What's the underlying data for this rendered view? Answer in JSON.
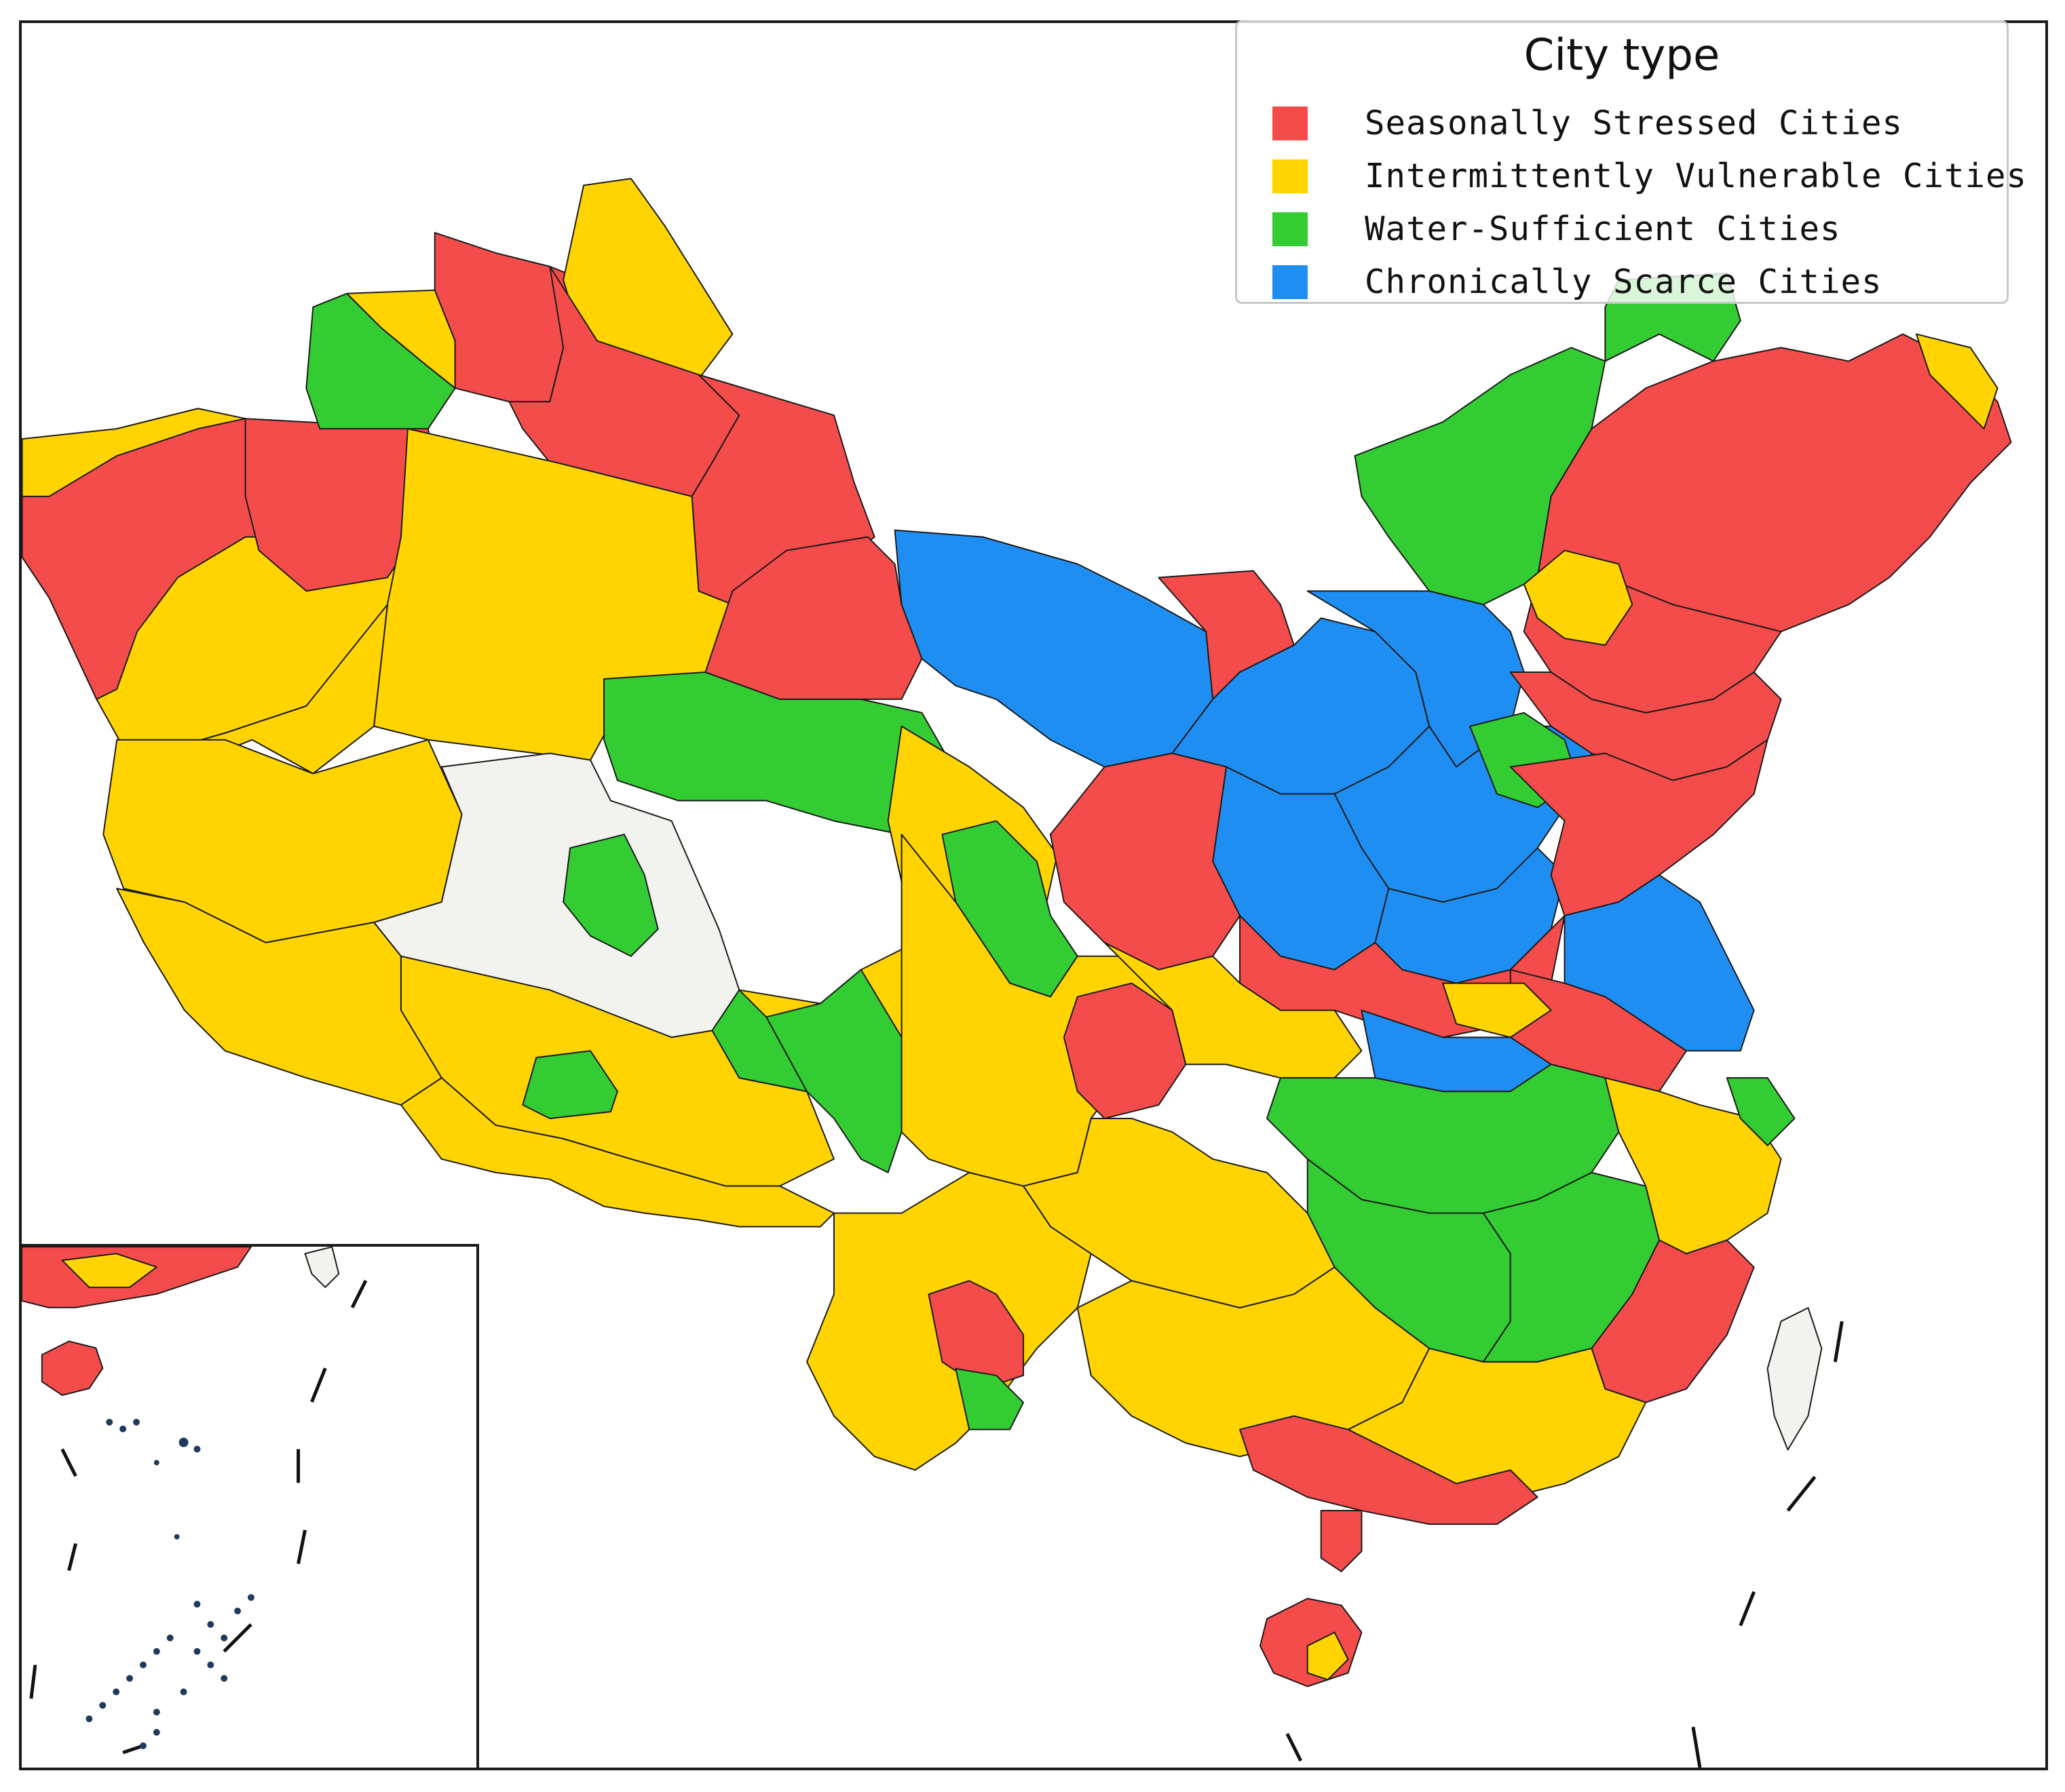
{
  "legend": {
    "title": "City type",
    "entries": [
      {
        "label": "Seasonally Stressed Cities",
        "color": "#f44b4b"
      },
      {
        "label": "Intermittently Vulnerable Cities",
        "color": "#ffd400"
      },
      {
        "label": "Water-Sufficient Cities",
        "color": "#33cc33"
      },
      {
        "label": "Chronically Scarce Cities",
        "color": "#1f8ef2"
      }
    ]
  },
  "colors": {
    "no_data": "#f2f2ee",
    "border": "#1b1b1b",
    "frame": "#1a1a1a",
    "background": "#ffffff"
  }
}
